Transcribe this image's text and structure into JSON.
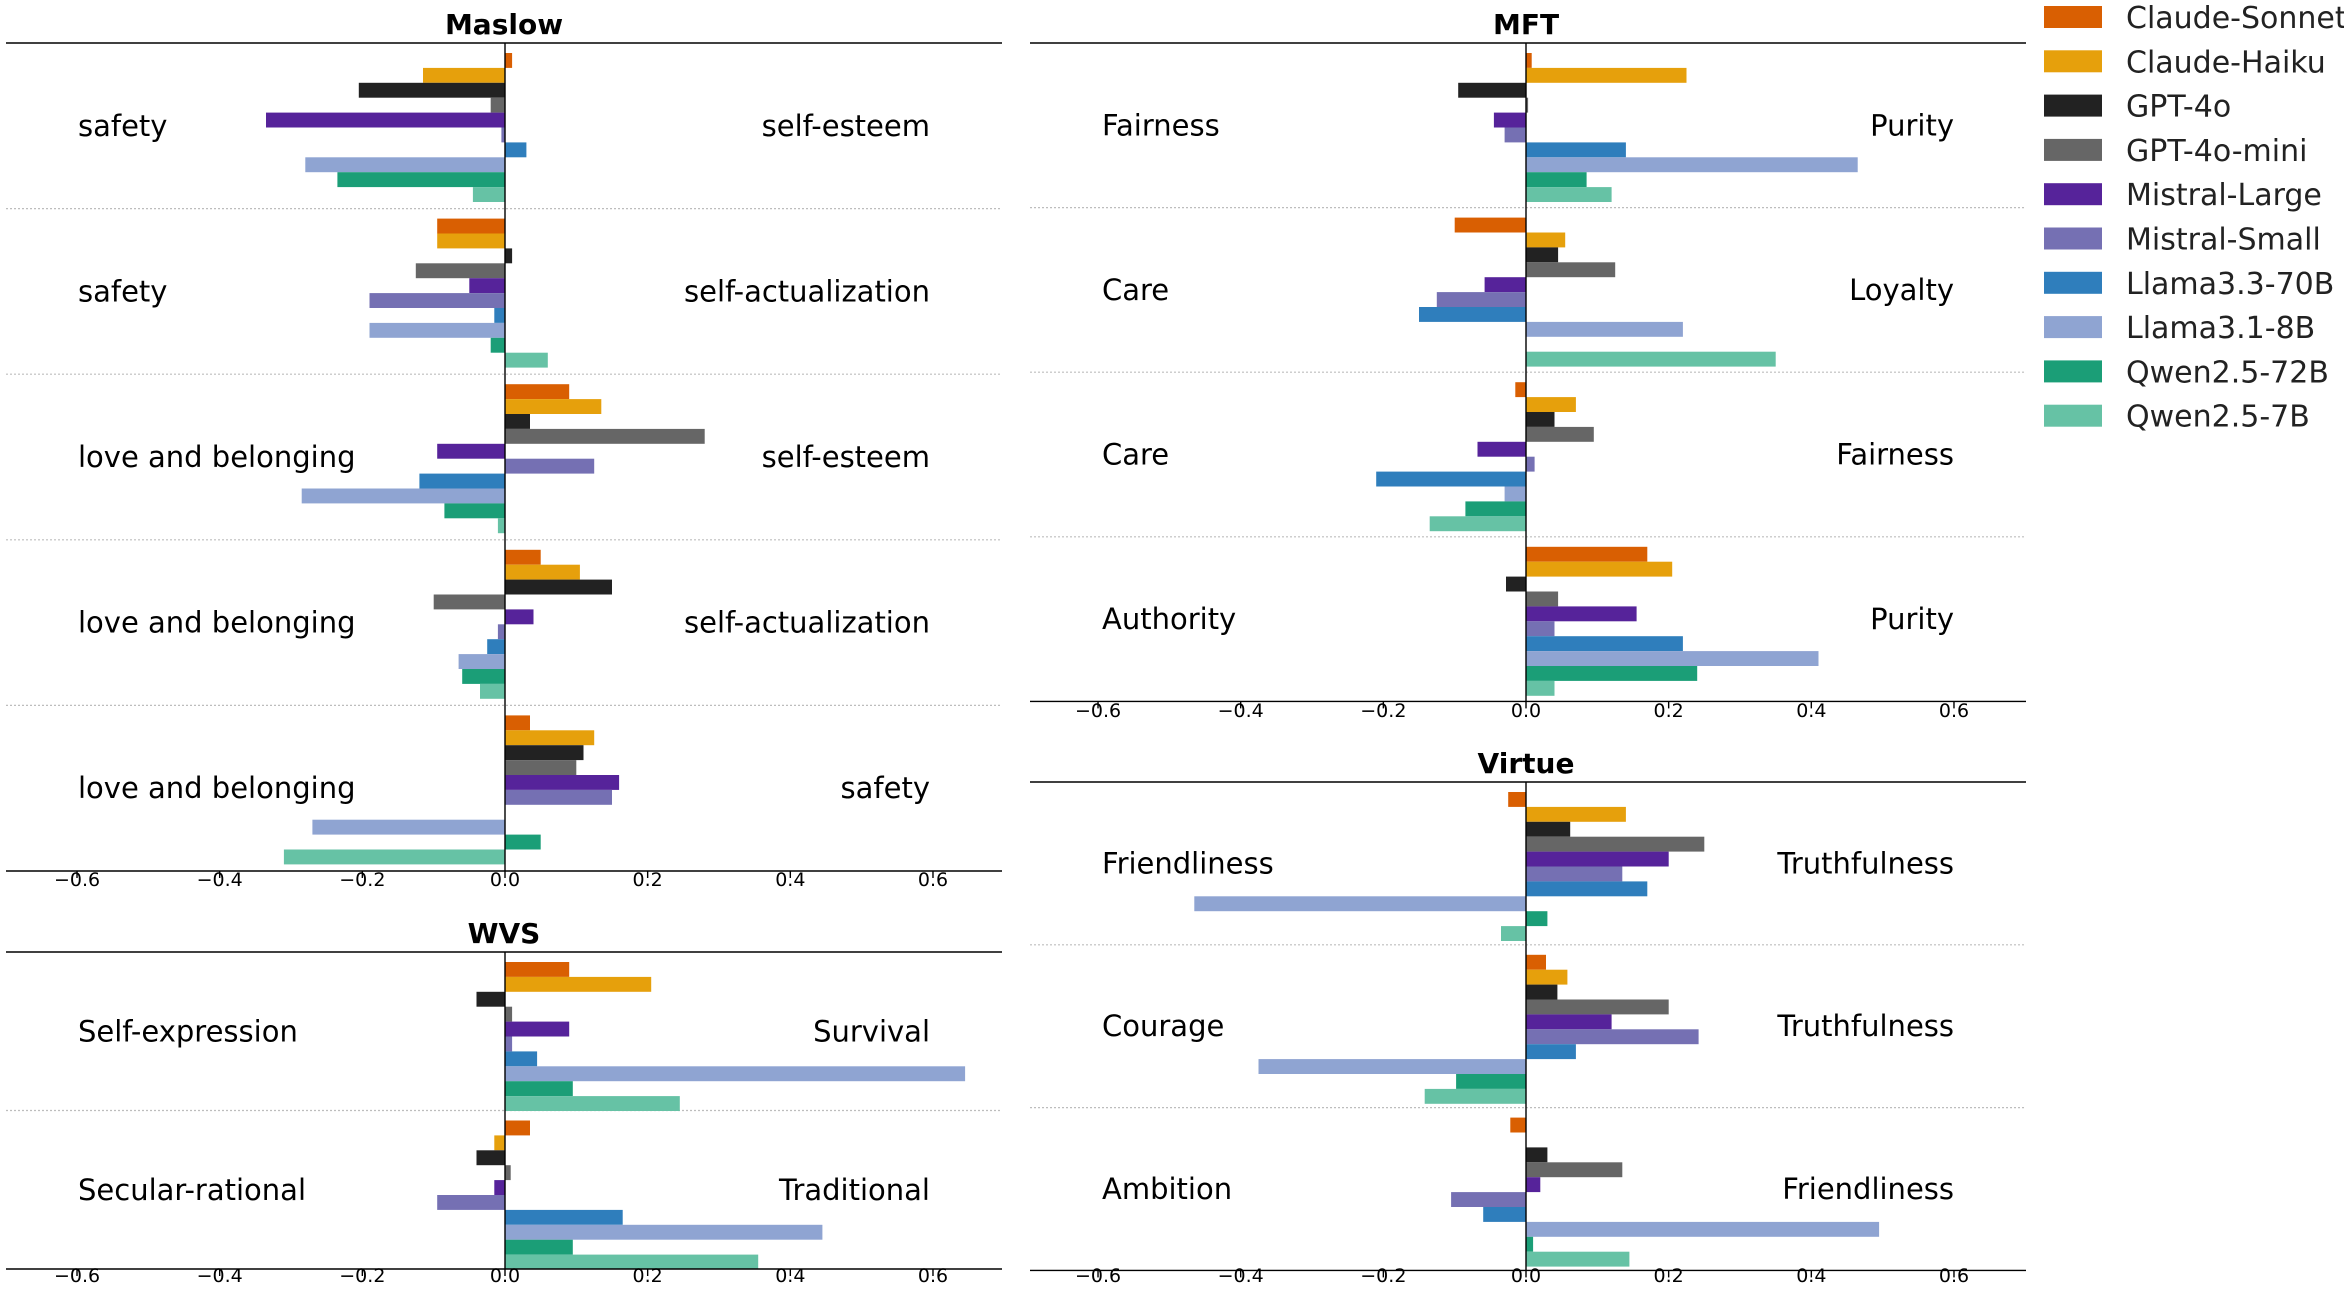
{
  "legend": {
    "models": [
      "Claude-Sonnet",
      "Claude-Haiku",
      "GPT-4o",
      "GPT-4o-mini",
      "Mistral-Large",
      "Mistral-Small",
      "Llama3.3-70B",
      "Llama3.1-8B",
      "Qwen2.5-72B",
      "Qwen2.5-7B"
    ],
    "colors": [
      "#d95f02",
      "#e6a00c",
      "#222222",
      "#666666",
      "#56239a",
      "#7570b3",
      "#2f7ebc",
      "#8fa4d2",
      "#1b9e77",
      "#66c2a5"
    ]
  },
  "chart_data": [
    {
      "type": "bar",
      "orientation": "horizontal",
      "title": "Maslow",
      "xlim": [
        -0.7,
        0.7
      ],
      "xticks": [
        "−0.6",
        "−0.4",
        "−0.2",
        "0.0",
        "0.2",
        "0.4",
        "0.6"
      ],
      "groups": [
        {
          "left": "safety",
          "right": "self-esteem",
          "values": [
            0.01,
            -0.115,
            -0.205,
            -0.02,
            -0.335,
            -0.005,
            0.03,
            -0.28,
            -0.235,
            -0.045
          ]
        },
        {
          "left": "safety",
          "right": "self-actualization",
          "values": [
            -0.095,
            -0.095,
            0.01,
            -0.125,
            -0.05,
            -0.19,
            -0.015,
            -0.19,
            -0.02,
            0.06
          ]
        },
        {
          "left": "love and belonging",
          "right": "self-esteem",
          "values": [
            0.09,
            0.135,
            0.035,
            0.28,
            -0.095,
            0.125,
            -0.12,
            -0.285,
            -0.085,
            -0.01
          ]
        },
        {
          "left": "love and belonging",
          "right": "self-actualization",
          "values": [
            0.05,
            0.105,
            0.15,
            -0.1,
            0.04,
            -0.01,
            -0.025,
            -0.065,
            -0.06,
            -0.035
          ]
        },
        {
          "left": "love and belonging",
          "right": "safety",
          "values": [
            0.035,
            0.125,
            0.11,
            0.1,
            0.16,
            0.15,
            0.0,
            -0.27,
            0.05,
            -0.31
          ]
        }
      ]
    },
    {
      "type": "bar",
      "orientation": "horizontal",
      "title": "MFT",
      "xlim": [
        -0.7,
        0.7
      ],
      "xticks": [
        "−0.6",
        "−0.4",
        "−0.2",
        "0.0",
        "0.2",
        "0.4",
        "0.6"
      ],
      "groups": [
        {
          "left": "Fairness",
          "right": "Purity",
          "values": [
            0.008,
            0.225,
            -0.095,
            0.003,
            -0.045,
            -0.03,
            0.14,
            0.465,
            0.085,
            0.12
          ]
        },
        {
          "left": "Care",
          "right": "Loyalty",
          "values": [
            -0.1,
            0.055,
            0.045,
            0.125,
            -0.058,
            -0.125,
            -0.15,
            0.22,
            0.0,
            0.35
          ]
        },
        {
          "left": "Care",
          "right": "Fairness",
          "values": [
            -0.015,
            0.07,
            0.04,
            0.095,
            -0.068,
            0.012,
            -0.21,
            -0.03,
            -0.085,
            -0.135
          ]
        },
        {
          "left": "Authority",
          "right": "Purity",
          "values": [
            0.17,
            0.205,
            -0.028,
            0.045,
            0.155,
            0.04,
            0.22,
            0.41,
            0.24,
            0.04
          ]
        }
      ]
    },
    {
      "type": "bar",
      "orientation": "horizontal",
      "title": "WVS",
      "xlim": [
        -0.7,
        0.7
      ],
      "xticks": [
        "−0.6",
        "−0.4",
        "−0.2",
        "0.0",
        "0.2",
        "0.4",
        "0.6"
      ],
      "groups": [
        {
          "left": "Self-expression",
          "right": "Survival",
          "values": [
            0.09,
            0.205,
            -0.04,
            0.01,
            0.09,
            0.01,
            0.045,
            0.645,
            0.095,
            0.245
          ]
        },
        {
          "left": "Secular-rational",
          "right": "Traditional",
          "values": [
            0.035,
            -0.015,
            -0.04,
            0.008,
            -0.015,
            -0.095,
            0.165,
            0.445,
            0.095,
            0.355
          ]
        }
      ]
    },
    {
      "type": "bar",
      "orientation": "horizontal",
      "title": "Virtue",
      "xlim": [
        -0.7,
        0.7
      ],
      "xticks": [
        "−0.6",
        "−0.4",
        "−0.2",
        "0.0",
        "0.2",
        "0.4",
        "0.6"
      ],
      "groups": [
        {
          "left": "Friendliness",
          "right": "Truthfulness",
          "values": [
            -0.025,
            0.14,
            0.062,
            0.25,
            0.2,
            0.135,
            0.17,
            -0.465,
            0.03,
            -0.035
          ]
        },
        {
          "left": "Courage",
          "right": "Truthfulness",
          "values": [
            0.028,
            0.058,
            0.044,
            0.2,
            0.12,
            0.242,
            0.07,
            -0.375,
            -0.098,
            -0.142
          ]
        },
        {
          "left": "Ambition",
          "right": "Friendliness",
          "values": [
            -0.022,
            0.0,
            0.03,
            0.135,
            0.02,
            -0.105,
            -0.06,
            0.495,
            0.01,
            0.145
          ]
        }
      ]
    }
  ]
}
